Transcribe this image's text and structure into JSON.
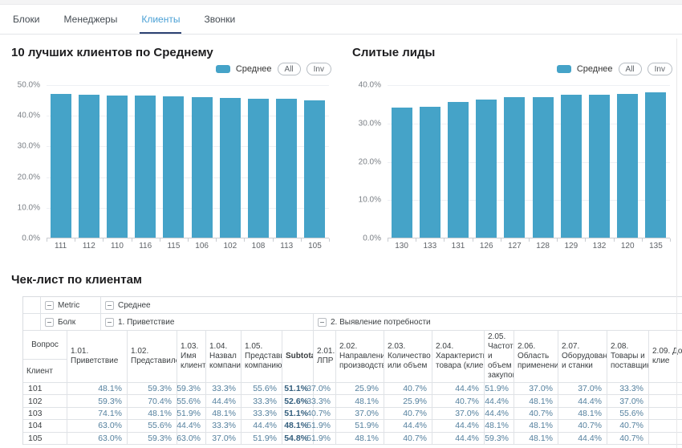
{
  "colors": {
    "bar": "#45a3c8",
    "active_tab": "#4aa0d5",
    "tab_underline": "#2d4373"
  },
  "tabs": {
    "items": [
      {
        "label": "Блоки",
        "active": false
      },
      {
        "label": "Менеджеры",
        "active": false
      },
      {
        "label": "Клиенты",
        "active": true
      },
      {
        "label": "Звонки",
        "active": false
      }
    ]
  },
  "charts": [
    {
      "title": "10 лучших клиентов по Среднему",
      "legend": {
        "series_label": "Среднее",
        "buttons": [
          "All",
          "Inv"
        ]
      },
      "chart_data": {
        "type": "bar",
        "categories": [
          "111",
          "112",
          "110",
          "116",
          "115",
          "106",
          "102",
          "108",
          "113",
          "105"
        ],
        "values": [
          46.9,
          46.5,
          46.4,
          46.3,
          46.0,
          45.8,
          45.5,
          45.4,
          45.2,
          44.7
        ],
        "series_name": "Среднее",
        "ylim": [
          0,
          50
        ],
        "ytick_labels": [
          "50.0%",
          "40.0%",
          "30.0%",
          "20.0%",
          "10.0%",
          "0.0%"
        ],
        "grid": true,
        "legend_position": "top-right",
        "xlabel": "",
        "ylabel": ""
      }
    },
    {
      "title": "Слитые лиды",
      "legend": {
        "series_label": "Среднее",
        "buttons": [
          "All",
          "Inv"
        ]
      },
      "chart_data": {
        "type": "bar",
        "categories": [
          "130",
          "133",
          "131",
          "126",
          "127",
          "128",
          "129",
          "132",
          "120",
          "135"
        ],
        "values": [
          34.0,
          34.1,
          35.4,
          36.1,
          36.6,
          36.7,
          37.2,
          37.3,
          37.5,
          37.9
        ],
        "series_name": "Среднее",
        "ylim": [
          0,
          40
        ],
        "ytick_labels": [
          "40.0%",
          "30.0%",
          "20.0%",
          "10.0%",
          "0.0%"
        ],
        "grid": true,
        "legend_position": "top-right",
        "xlabel": "",
        "ylabel": ""
      }
    }
  ],
  "table": {
    "title": "Чек-лист по клиентам",
    "metric_row": {
      "axis_label": "Metric",
      "group_label": "Среднее"
    },
    "block_row": {
      "axis_label": "Болк",
      "groups": [
        {
          "label": "1. Приветствие"
        },
        {
          "label": "2. Выявление потребности"
        }
      ]
    },
    "question_axis_label": "Вопрос",
    "row_axis_label": "Клиент",
    "columns": [
      "1.01. Приветствие",
      "1.02. Представился",
      "1.03. Имя клиента",
      "1.04. Назвал компанию",
      "1.05. Представил компанию",
      "Subtotal",
      "2.01. ЛПР",
      "2.02. Направления производства",
      "2.03. Количество или объем",
      "2.04. Характеристики товара (клиент)",
      "2.05. Частота и объем закупок",
      "2.06. Область применения",
      "2.07. Оборудование и станки",
      "2.08. Товары и поставщики",
      "2.09. Дол клие"
    ],
    "rows": [
      {
        "client": "101",
        "values": [
          "48.1%",
          "59.3%",
          "59.3%",
          "33.3%",
          "55.6%",
          "51.1%",
          "37.0%",
          "25.9%",
          "40.7%",
          "44.4%",
          "51.9%",
          "37.0%",
          "37.0%",
          "33.3%",
          ""
        ]
      },
      {
        "client": "102",
        "values": [
          "59.3%",
          "70.4%",
          "55.6%",
          "44.4%",
          "33.3%",
          "52.6%",
          "33.3%",
          "48.1%",
          "25.9%",
          "40.7%",
          "44.4%",
          "48.1%",
          "44.4%",
          "37.0%",
          ""
        ]
      },
      {
        "client": "103",
        "values": [
          "74.1%",
          "48.1%",
          "51.9%",
          "48.1%",
          "33.3%",
          "51.1%",
          "40.7%",
          "37.0%",
          "40.7%",
          "37.0%",
          "44.4%",
          "40.7%",
          "48.1%",
          "55.6%",
          ""
        ]
      },
      {
        "client": "104",
        "values": [
          "63.0%",
          "55.6%",
          "44.4%",
          "33.3%",
          "44.4%",
          "48.1%",
          "51.9%",
          "51.9%",
          "44.4%",
          "44.4%",
          "48.1%",
          "48.1%",
          "40.7%",
          "40.7%",
          ""
        ]
      },
      {
        "client": "105",
        "values": [
          "63.0%",
          "59.3%",
          "63.0%",
          "37.0%",
          "51.9%",
          "54.8%",
          "51.9%",
          "48.1%",
          "40.7%",
          "44.4%",
          "59.3%",
          "48.1%",
          "44.4%",
          "40.7%",
          ""
        ]
      }
    ]
  }
}
